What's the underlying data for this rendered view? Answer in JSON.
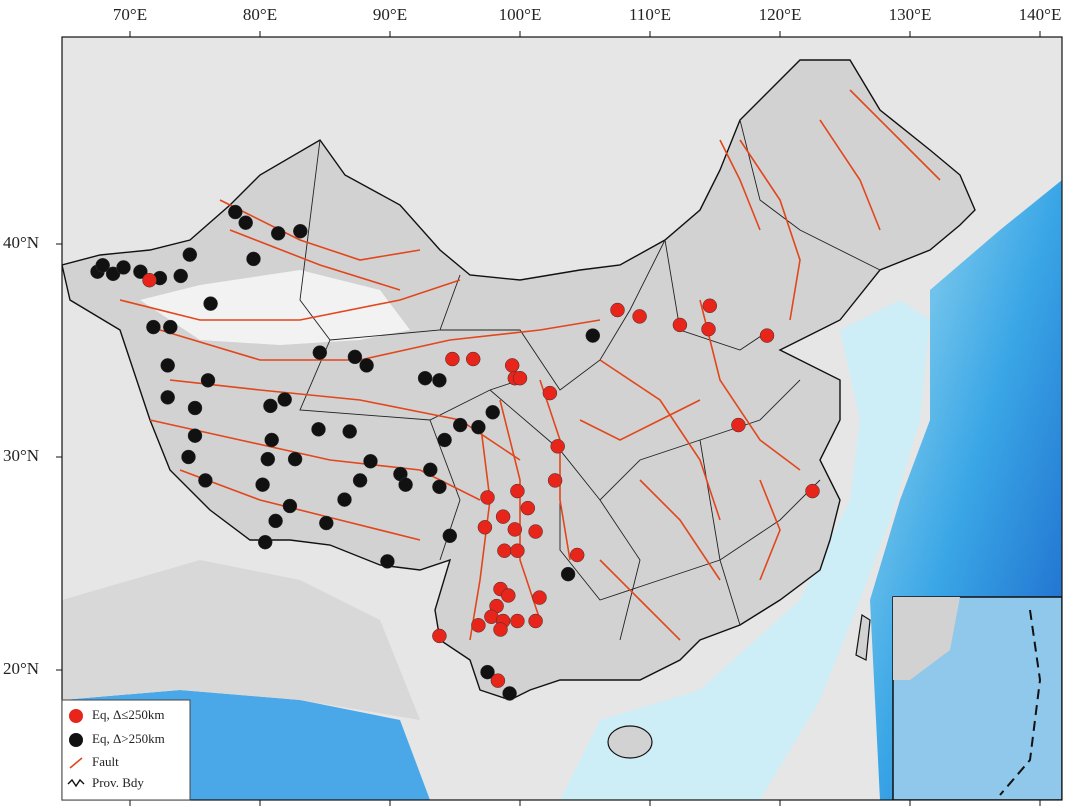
{
  "map": {
    "lon_ticks": [
      {
        "value": 70,
        "label": "70°E"
      },
      {
        "value": 80,
        "label": "80°E"
      },
      {
        "value": 90,
        "label": "90°E"
      },
      {
        "value": 100,
        "label": "100°E"
      },
      {
        "value": 110,
        "label": "110°E"
      },
      {
        "value": 120,
        "label": "120°E"
      },
      {
        "value": 130,
        "label": "130°E"
      },
      {
        "value": 140,
        "label": "140°E"
      }
    ],
    "lat_ticks": [
      {
        "value": 20,
        "label": "20°N"
      },
      {
        "value": 30,
        "label": "30°N"
      },
      {
        "value": 40,
        "label": "40°N"
      }
    ],
    "legend": [
      "Eq, Δ≤250km",
      "Eq, Δ>250km",
      "Fault",
      "Prov. Bdy"
    ],
    "near_color": "#e8251a",
    "far_color": "#111111",
    "earthquakes_near": [
      [
        71.5,
        38.3
      ],
      [
        94.8,
        34.6
      ],
      [
        96.4,
        34.6
      ],
      [
        99.4,
        34.3
      ],
      [
        99.6,
        33.7
      ],
      [
        100.0,
        33.7
      ],
      [
        102.3,
        33.0
      ],
      [
        102.9,
        30.5
      ],
      [
        102.7,
        28.9
      ],
      [
        97.5,
        28.1
      ],
      [
        99.8,
        28.4
      ],
      [
        100.6,
        27.6
      ],
      [
        98.7,
        27.2
      ],
      [
        97.3,
        26.7
      ],
      [
        99.6,
        26.6
      ],
      [
        101.2,
        26.5
      ],
      [
        98.8,
        25.6
      ],
      [
        99.8,
        25.6
      ],
      [
        104.4,
        25.4
      ],
      [
        98.5,
        23.8
      ],
      [
        99.1,
        23.5
      ],
      [
        101.5,
        23.4
      ],
      [
        98.2,
        23.0
      ],
      [
        97.8,
        22.5
      ],
      [
        96.8,
        22.1
      ],
      [
        98.7,
        22.3
      ],
      [
        99.8,
        22.3
      ],
      [
        101.2,
        22.3
      ],
      [
        98.5,
        21.9
      ],
      [
        93.8,
        21.6
      ],
      [
        98.3,
        19.5
      ],
      [
        107.5,
        36.9
      ],
      [
        109.2,
        36.6
      ],
      [
        112.3,
        36.2
      ],
      [
        114.6,
        37.1
      ],
      [
        114.5,
        36.0
      ],
      [
        119.0,
        35.7
      ],
      [
        116.8,
        31.5
      ],
      [
        122.5,
        28.4
      ]
    ],
    "earthquakes_far": [
      [
        67.5,
        38.7
      ],
      [
        67.9,
        39.0
      ],
      [
        68.7,
        38.6
      ],
      [
        69.5,
        38.9
      ],
      [
        70.8,
        38.7
      ],
      [
        72.3,
        38.4
      ],
      [
        73.9,
        38.5
      ],
      [
        74.6,
        39.5
      ],
      [
        78.1,
        41.5
      ],
      [
        78.9,
        41.0
      ],
      [
        81.4,
        40.5
      ],
      [
        83.1,
        40.6
      ],
      [
        79.5,
        39.3
      ],
      [
        76.2,
        37.2
      ],
      [
        71.8,
        36.1
      ],
      [
        73.1,
        36.1
      ],
      [
        72.9,
        34.3
      ],
      [
        76.0,
        33.6
      ],
      [
        72.9,
        32.8
      ],
      [
        75.0,
        32.3
      ],
      [
        75.0,
        31.0
      ],
      [
        74.5,
        30.0
      ],
      [
        75.8,
        28.9
      ],
      [
        80.2,
        28.7
      ],
      [
        80.6,
        29.9
      ],
      [
        80.9,
        30.8
      ],
      [
        80.8,
        32.4
      ],
      [
        81.9,
        32.7
      ],
      [
        82.7,
        29.9
      ],
      [
        82.3,
        27.7
      ],
      [
        81.2,
        27.0
      ],
      [
        80.4,
        26.0
      ],
      [
        84.6,
        34.9
      ],
      [
        87.3,
        34.7
      ],
      [
        88.2,
        34.3
      ],
      [
        92.7,
        33.7
      ],
      [
        93.8,
        33.6
      ],
      [
        84.5,
        31.3
      ],
      [
        86.9,
        31.2
      ],
      [
        85.1,
        26.9
      ],
      [
        86.5,
        28.0
      ],
      [
        87.7,
        28.9
      ],
      [
        88.5,
        29.8
      ],
      [
        90.8,
        29.2
      ],
      [
        91.2,
        28.7
      ],
      [
        93.1,
        29.4
      ],
      [
        93.8,
        28.6
      ],
      [
        94.2,
        30.8
      ],
      [
        95.4,
        31.5
      ],
      [
        96.8,
        31.4
      ],
      [
        97.9,
        32.1
      ],
      [
        105.6,
        35.7
      ],
      [
        103.7,
        24.5
      ],
      [
        89.8,
        25.1
      ],
      [
        94.6,
        26.3
      ],
      [
        97.5,
        19.9
      ],
      [
        99.2,
        18.9
      ]
    ]
  }
}
